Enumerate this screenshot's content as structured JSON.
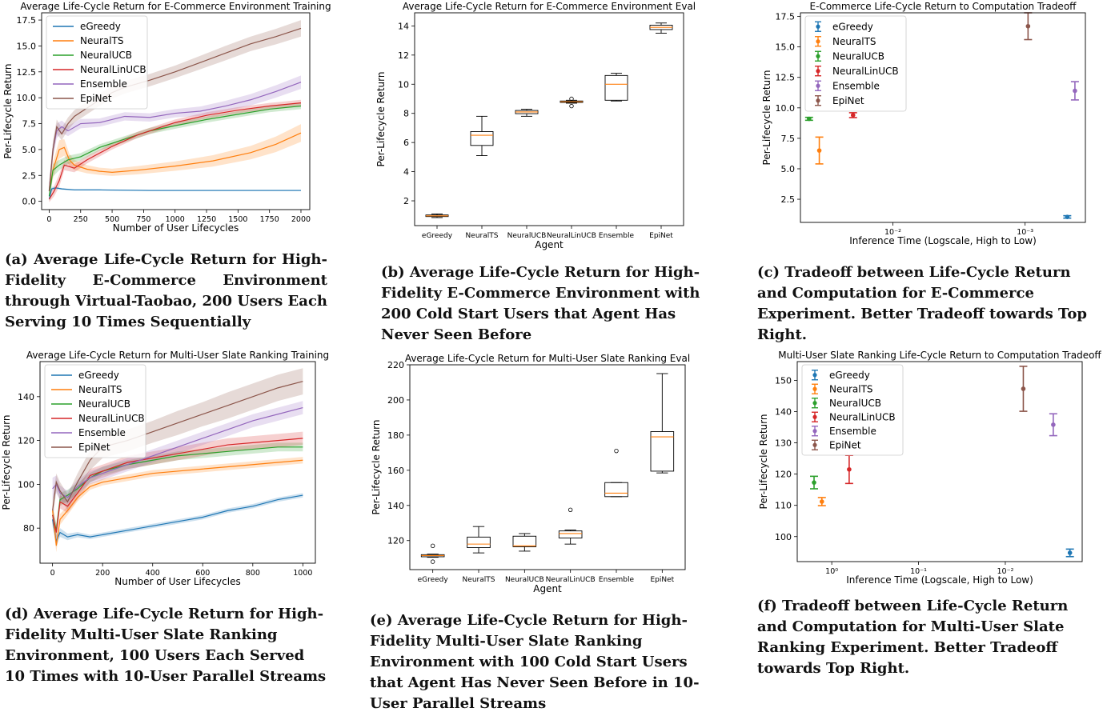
{
  "colors": {
    "eGreedy": "#1f77b4",
    "NeuralTS": "#ff7f0e",
    "NeuralUCB": "#2ca02c",
    "NeuralLinUCB": "#d62728",
    "Ensemble": "#9467bd",
    "EpiNet": "#8c564b",
    "median": "#ff7f0e"
  },
  "captions": {
    "a": "(a) Average Life-Cycle Return for High-Fidelity E-Commerce Environment through Virtual-Taobao, 200 Users Each Serving 10 Times Sequentially",
    "b": "(b) Average Life-Cycle Return for High-Fidelity E-Commerce Environment with 200 Cold Start Users that Agent Has Never Seen Before",
    "c": "(c) Tradeoff between Life-Cycle Return and Computation for E-Commerce Experiment. Better Tradeoff towards Top Right.",
    "d": "(d) Average Life-Cycle Return for High-Fidelity Multi-User Slate Ranking Environment, 100 Users Each Served 10 Times with 10-User Parallel Streams",
    "e": "(e) Average Life-Cycle Return for High-Fidelity Multi-User Slate Ranking Environment with 100 Cold Start Users that Agent Has Never Seen Before in 10-User Parallel Streams",
    "f": "(f) Tradeoff between Life-Cycle Return and Computation for Multi-User Slate Ranking Experiment. Better Tradeoff towards Top Right."
  },
  "chart_data": [
    {
      "id": "a",
      "type": "line",
      "title": "Average Life-Cycle Return for E-Commerce Environment Training",
      "xlabel": "Number of User Lifecycles",
      "ylabel": "Per-Lifecycle Return",
      "xlim": [
        -60,
        2070
      ],
      "ylim": [
        -0.8,
        18.2
      ],
      "xticks": [
        0,
        250,
        500,
        750,
        1000,
        1250,
        1500,
        1750,
        2000
      ],
      "xtick_labels": [
        "0",
        "250",
        "500",
        "750",
        "1000",
        "1250",
        "1500",
        "1750",
        "2000"
      ],
      "yticks": [
        0.0,
        2.5,
        5.0,
        7.5,
        10.0,
        12.5,
        15.0,
        17.5
      ],
      "ytick_labels": [
        "0.0",
        "2.5",
        "5.0",
        "7.5",
        "10.0",
        "12.5",
        "15.0",
        "17.5"
      ],
      "legend": "top-left",
      "series": [
        {
          "name": "eGreedy",
          "x": [
            0,
            20,
            50,
            100,
            200,
            400,
            800,
            1200,
            1600,
            2000
          ],
          "y": [
            0.2,
            1.2,
            1.3,
            1.2,
            1.1,
            1.1,
            1.05,
            1.05,
            1.05,
            1.05
          ],
          "band": [
            0.1,
            0.2,
            0.1,
            0.08,
            0.05,
            0.05,
            0.05,
            0.05,
            0.05,
            0.05
          ]
        },
        {
          "name": "NeuralTS",
          "x": [
            0,
            30,
            80,
            120,
            160,
            200,
            300,
            400,
            500,
            700,
            1000,
            1300,
            1600,
            1800,
            2000
          ],
          "y": [
            1.0,
            3.0,
            5.0,
            5.2,
            4.0,
            3.5,
            3.1,
            2.9,
            2.8,
            3.0,
            3.4,
            3.9,
            4.7,
            5.5,
            6.6
          ],
          "band": [
            0.6,
            0.8,
            0.9,
            0.8,
            0.6,
            0.5,
            0.4,
            0.35,
            0.35,
            0.4,
            0.45,
            0.55,
            0.65,
            0.75,
            0.85
          ]
        },
        {
          "name": "NeuralUCB",
          "x": [
            0,
            30,
            80,
            150,
            250,
            400,
            600,
            800,
            1000,
            1250,
            1500,
            1750,
            2000
          ],
          "y": [
            0.5,
            3.0,
            3.5,
            4.0,
            4.3,
            5.2,
            6.0,
            6.8,
            7.3,
            7.9,
            8.4,
            8.9,
            9.2
          ],
          "band": [
            0.5,
            0.6,
            0.5,
            0.4,
            0.35,
            0.3,
            0.3,
            0.3,
            0.3,
            0.3,
            0.3,
            0.3,
            0.3
          ]
        },
        {
          "name": "NeuralLinUCB",
          "x": [
            0,
            40,
            80,
            120,
            200,
            300,
            500,
            700,
            1000,
            1250,
            1500,
            1750,
            2000
          ],
          "y": [
            0.2,
            1.0,
            2.0,
            3.5,
            3.2,
            4.0,
            5.3,
            6.4,
            7.6,
            8.3,
            8.8,
            9.2,
            9.5
          ],
          "band": [
            0.3,
            0.5,
            0.6,
            0.5,
            0.4,
            0.35,
            0.3,
            0.3,
            0.3,
            0.3,
            0.3,
            0.3,
            0.3
          ]
        },
        {
          "name": "Ensemble",
          "x": [
            0,
            30,
            60,
            100,
            150,
            250,
            400,
            600,
            800,
            1000,
            1200,
            1400,
            1600,
            1800,
            2000
          ],
          "y": [
            1.0,
            5.0,
            6.8,
            7.2,
            6.8,
            7.5,
            7.6,
            8.2,
            8.1,
            8.5,
            8.7,
            9.2,
            9.8,
            10.6,
            11.5
          ],
          "band": [
            0.8,
            0.8,
            0.7,
            0.6,
            0.5,
            0.45,
            0.4,
            0.4,
            0.4,
            0.4,
            0.45,
            0.5,
            0.55,
            0.6,
            0.65
          ]
        },
        {
          "name": "EpiNet",
          "x": [
            0,
            30,
            60,
            100,
            150,
            200,
            300,
            400,
            500,
            600,
            800,
            1000,
            1200,
            1400,
            1600,
            1800,
            2000
          ],
          "y": [
            1.0,
            5.0,
            7.2,
            6.5,
            7.5,
            8.2,
            9.0,
            9.8,
            10.5,
            11.0,
            11.7,
            12.5,
            13.4,
            14.3,
            15.2,
            15.9,
            16.7
          ],
          "band": [
            0.8,
            0.8,
            0.7,
            0.6,
            0.6,
            0.6,
            0.6,
            0.6,
            0.6,
            0.6,
            0.6,
            0.6,
            0.65,
            0.7,
            0.7,
            0.75,
            0.8
          ]
        }
      ]
    },
    {
      "id": "b",
      "type": "box",
      "title": "Average Life-Cycle Return for E-Commerce Environment Eval",
      "xlabel": "Agent",
      "ylabel": "Per-Lifecycle Return",
      "ylim": [
        0.3,
        14.9
      ],
      "yticks": [
        2,
        4,
        6,
        8,
        10,
        12,
        14
      ],
      "ytick_labels": [
        "2",
        "4",
        "6",
        "8",
        "10",
        "12",
        "14"
      ],
      "categories": [
        "eGreedy",
        "NeuralTS",
        "NeuralUCB",
        "NeuralLinUCB",
        "Ensemble",
        "EpiNet"
      ],
      "boxes": [
        {
          "min": 0.85,
          "q1": 0.92,
          "median": 0.97,
          "q3": 1.03,
          "max": 1.1,
          "outliers": []
        },
        {
          "min": 5.1,
          "q1": 5.8,
          "median": 6.5,
          "q3": 6.75,
          "max": 7.8,
          "outliers": []
        },
        {
          "min": 7.8,
          "q1": 7.98,
          "median": 8.1,
          "q3": 8.2,
          "max": 8.28,
          "outliers": []
        },
        {
          "min": 8.7,
          "q1": 8.75,
          "median": 8.8,
          "q3": 8.85,
          "max": 8.9,
          "outliers": [
            8.5,
            9.0
          ]
        },
        {
          "min": 8.85,
          "q1": 8.9,
          "median": 10.0,
          "q3": 10.6,
          "max": 10.75,
          "outliers": []
        },
        {
          "min": 13.5,
          "q1": 13.75,
          "median": 13.9,
          "q3": 14.05,
          "max": 14.2,
          "outliers": []
        }
      ]
    },
    {
      "id": "c",
      "type": "errorbar",
      "title": "E-Commerce Life-Cycle Return to Computation Tradeoff",
      "xlabel": "Inference Time (Logscale, High to Low)",
      "ylabel": "Per-Lifecycle Return",
      "xscale": "log-reversed",
      "xlim": [
        0.05,
        0.00035
      ],
      "ylim": [
        0.6,
        17.8
      ],
      "xticks": [
        0.01,
        0.001
      ],
      "xtick_labels": [
        "10⁻²",
        "10⁻³"
      ],
      "yticks": [
        2.5,
        5.0,
        7.5,
        10.0,
        12.5,
        15.0,
        17.5
      ],
      "ytick_labels": [
        "2.5",
        "5.0",
        "7.5",
        "10.0",
        "12.5",
        "15.0",
        "17.5"
      ],
      "legend": "top-left",
      "points": [
        {
          "name": "eGreedy",
          "x": 0.00048,
          "y": 1.05,
          "err": 0.1
        },
        {
          "name": "NeuralTS",
          "x": 0.036,
          "y": 6.5,
          "err": 1.1
        },
        {
          "name": "NeuralUCB",
          "x": 0.043,
          "y": 9.1,
          "err": 0.12
        },
        {
          "name": "NeuralLinUCB",
          "x": 0.02,
          "y": 9.4,
          "err": 0.2
        },
        {
          "name": "Ensemble",
          "x": 0.00042,
          "y": 11.4,
          "err": 0.75
        },
        {
          "name": "EpiNet",
          "x": 0.00095,
          "y": 16.7,
          "err": 1.1
        }
      ]
    },
    {
      "id": "d",
      "type": "line",
      "title": "Average Life-Cycle Return for Multi-User Slate Ranking Training",
      "xlabel": "Number of User Lifecycles",
      "ylabel": "Per-Lifecycle Return",
      "xlim": [
        -50,
        1050
      ],
      "ylim": [
        64,
        156
      ],
      "xticks": [
        0,
        200,
        400,
        600,
        800,
        1000
      ],
      "xtick_labels": [
        "0",
        "200",
        "400",
        "600",
        "800",
        "1000"
      ],
      "yticks": [
        80,
        100,
        120,
        140
      ],
      "ytick_labels": [
        "80",
        "100",
        "120",
        "140"
      ],
      "legend": "top-left",
      "series": [
        {
          "name": "eGreedy",
          "x": [
            0,
            15,
            30,
            60,
            100,
            150,
            200,
            300,
            400,
            500,
            600,
            700,
            800,
            900,
            1000
          ],
          "y": [
            84,
            74,
            78,
            76,
            77,
            76,
            77,
            79,
            81,
            83,
            85,
            88,
            90,
            93,
            95
          ],
          "band": [
            3,
            2.5,
            2,
            1.5,
            1.2,
            1,
            1,
            1,
            1,
            1,
            1,
            1,
            1,
            1,
            1
          ]
        },
        {
          "name": "NeuralTS",
          "x": [
            0,
            15,
            30,
            60,
            100,
            150,
            200,
            300,
            400,
            500,
            600,
            700,
            800,
            900,
            1000
          ],
          "y": [
            88,
            72,
            84,
            88,
            94,
            99,
            101,
            103,
            105,
            106,
            107,
            108,
            109,
            110,
            111
          ],
          "band": [
            4,
            3,
            2.5,
            2,
            1.8,
            1.5,
            1.5,
            1.5,
            1.5,
            1.5,
            1.5,
            1.5,
            1.5,
            1.5,
            1.5
          ]
        },
        {
          "name": "NeuralUCB",
          "x": [
            0,
            15,
            30,
            60,
            100,
            150,
            200,
            300,
            400,
            500,
            600,
            700,
            800,
            900,
            1000
          ],
          "y": [
            86,
            79,
            93,
            95,
            98,
            103,
            106,
            109,
            111,
            113,
            114,
            115,
            116,
            117,
            117
          ],
          "band": [
            4,
            3,
            3,
            2.5,
            2.5,
            2.2,
            2,
            2,
            2,
            2,
            2,
            2,
            2,
            2,
            2
          ]
        },
        {
          "name": "NeuralLinUCB",
          "x": [
            0,
            15,
            30,
            60,
            100,
            150,
            200,
            300,
            400,
            500,
            600,
            700,
            800,
            900,
            1000
          ],
          "y": [
            86,
            78,
            92,
            90,
            96,
            104,
            106,
            110,
            112,
            114,
            116,
            118,
            119,
            120,
            121
          ],
          "band": [
            4,
            3.5,
            3,
            3,
            3,
            3,
            3,
            3,
            3,
            3,
            3,
            3,
            3,
            3,
            3
          ]
        },
        {
          "name": "Ensemble",
          "x": [
            0,
            15,
            30,
            60,
            100,
            150,
            200,
            300,
            400,
            500,
            600,
            700,
            800,
            900,
            1000
          ],
          "y": [
            98,
            100,
            96,
            94,
            99,
            103,
            105,
            109,
            113,
            117,
            121,
            125,
            129,
            132,
            135
          ],
          "band": [
            5,
            4,
            3.5,
            3,
            3,
            3,
            3,
            3,
            3,
            3,
            3,
            3,
            3,
            3,
            3
          ]
        },
        {
          "name": "EpiNet",
          "x": [
            0,
            15,
            30,
            60,
            100,
            150,
            200,
            300,
            400,
            500,
            600,
            700,
            800,
            900,
            1000
          ],
          "y": [
            88,
            101,
            97,
            92,
            101,
            111,
            117,
            120,
            124,
            128,
            132,
            136,
            140,
            144,
            147
          ],
          "band": [
            5,
            4,
            4,
            3.5,
            4,
            4.5,
            5,
            5,
            5,
            5.5,
            5.5,
            6,
            6,
            6,
            6
          ]
        }
      ]
    },
    {
      "id": "e",
      "type": "box",
      "title": "Average Life-Cycle Return for Multi-User Slate Ranking Eval",
      "xlabel": "Agent",
      "ylabel": "Per-Lifecycle Return",
      "ylim": [
        103.5,
        220
      ],
      "yticks": [
        120,
        140,
        160,
        180,
        200,
        220
      ],
      "ytick_labels": [
        "120",
        "140",
        "160",
        "180",
        "200",
        "220"
      ],
      "categories": [
        "eGreedy",
        "NeuralTS",
        "NeuralUCB",
        "NeuralLinUCB",
        "Ensemble",
        "EpiNet"
      ],
      "boxes": [
        {
          "min": 110.5,
          "q1": 110.8,
          "median": 111.5,
          "q3": 112,
          "max": 112.3,
          "outliers": [
            108,
            117
          ]
        },
        {
          "min": 113,
          "q1": 116,
          "median": 118,
          "q3": 122,
          "max": 128,
          "outliers": []
        },
        {
          "min": 114,
          "q1": 116.5,
          "median": 117,
          "q3": 122.5,
          "max": 124,
          "outliers": []
        },
        {
          "min": 118,
          "q1": 121.5,
          "median": 124,
          "q3": 125.5,
          "max": 126,
          "outliers": [
            137.5
          ]
        },
        {
          "min": 145,
          "q1": 145,
          "median": 147,
          "q3": 153,
          "max": 153,
          "outliers": [
            171
          ]
        },
        {
          "min": 158.5,
          "q1": 159.5,
          "median": 179,
          "q3": 182,
          "max": 215,
          "outliers": []
        }
      ]
    },
    {
      "id": "f",
      "type": "errorbar",
      "title": "Multi-User Slate Ranking Life-Cycle Return to Computation Tradeoff",
      "xlabel": "Inference Time (Logscale, High to Low)",
      "ylabel": "Per-Lifecycle Return",
      "xscale": "log-reversed",
      "xlim": [
        2.5,
        0.0013
      ],
      "ylim": [
        92,
        156
      ],
      "xticks": [
        1,
        0.1,
        0.01
      ],
      "xtick_labels": [
        "10⁰",
        "10⁻¹",
        "10⁻²"
      ],
      "yticks": [
        100,
        110,
        120,
        130,
        140,
        150
      ],
      "ytick_labels": [
        "100",
        "110",
        "120",
        "130",
        "140",
        "150"
      ],
      "legend": "top-left",
      "points": [
        {
          "name": "eGreedy",
          "x": 0.0018,
          "y": 94.8,
          "err": 1.2
        },
        {
          "name": "NeuralTS",
          "x": 1.3,
          "y": 111.2,
          "err": 1.3
        },
        {
          "name": "NeuralUCB",
          "x": 1.6,
          "y": 117.3,
          "err": 2.0
        },
        {
          "name": "NeuralLinUCB",
          "x": 0.63,
          "y": 121.5,
          "err": 4.5
        },
        {
          "name": "Ensemble",
          "x": 0.0028,
          "y": 135.8,
          "err": 3.5
        },
        {
          "name": "EpiNet",
          "x": 0.0062,
          "y": 147.3,
          "err": 7.2
        }
      ]
    }
  ]
}
